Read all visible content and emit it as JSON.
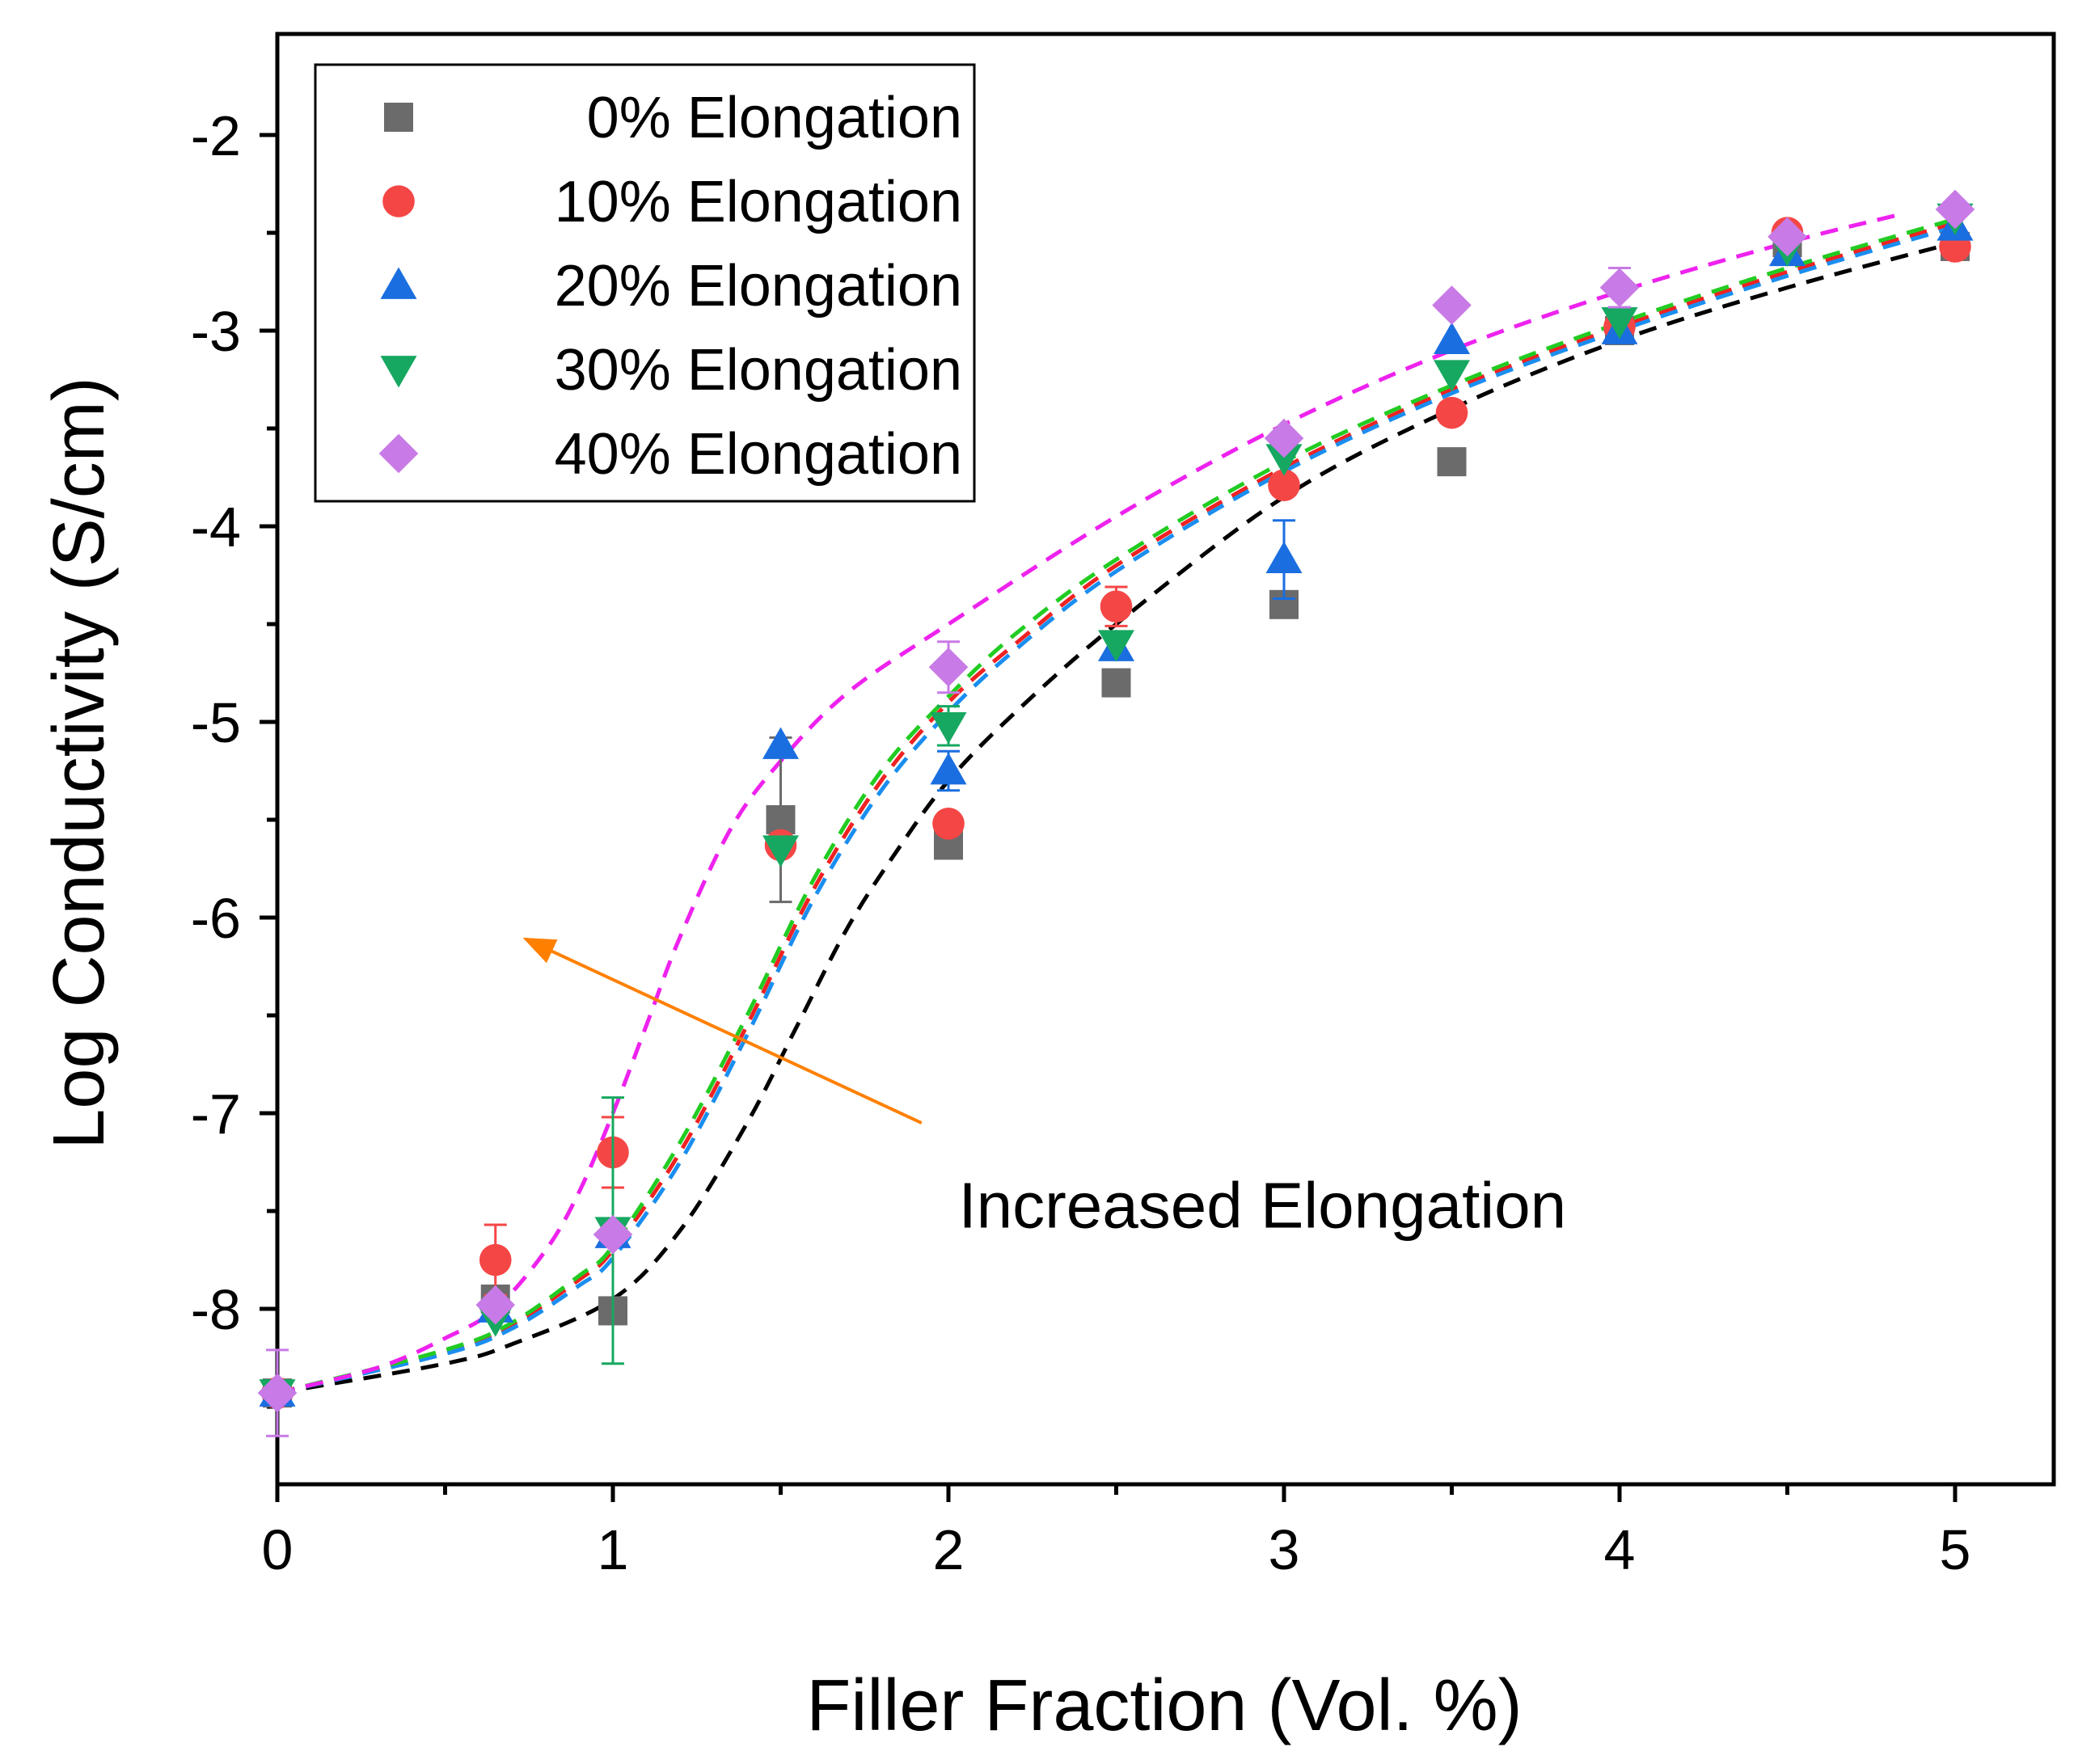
{
  "chart_data": {
    "type": "scatter",
    "title": "",
    "xlabel": "Filler Fraction (Vol. %)",
    "ylabel": "Log Conductivity (S/cm)",
    "xlim": [
      0,
      5.3
    ],
    "ylim": [
      -8.9,
      -1.5
    ],
    "x_ticks": [
      0,
      1,
      2,
      3,
      4,
      5
    ],
    "x_tick_labels": [
      "0",
      "1",
      "2",
      "3",
      "4",
      "5"
    ],
    "y_ticks": [
      -2,
      -3,
      -4,
      -5,
      -6,
      -7,
      -8
    ],
    "y_tick_labels": [
      "-2",
      "-3",
      "-4",
      "-5",
      "-6",
      "-7",
      "-8"
    ],
    "legend_position": "top-left",
    "series": [
      {
        "name": "0% Elongation",
        "label": "0% Elongation",
        "marker": "square",
        "color": "#6b6b6b",
        "fit_color": "#000000",
        "x": [
          0,
          0.65,
          1,
          1.5,
          2,
          2.5,
          3,
          3.5,
          4,
          4.5,
          5
        ],
        "y": [
          -8.43,
          -7.95,
          -8.01,
          -5.5,
          -5.63,
          -4.8,
          -4.4,
          -3.67,
          -3.0,
          -2.55,
          -2.57
        ],
        "err": [
          0,
          0,
          0,
          0.42,
          0,
          0,
          0,
          0,
          0,
          0,
          0
        ],
        "fit_x": [
          0,
          0.5,
          0.7,
          1,
          1.2,
          1.4,
          1.55,
          1.7,
          1.85,
          2,
          2.2,
          2.5,
          3,
          3.5,
          4,
          4.5,
          5
        ],
        "fit_y": [
          -8.43,
          -8.28,
          -8.18,
          -7.95,
          -7.6,
          -7.05,
          -6.55,
          -6.05,
          -5.65,
          -5.3,
          -4.95,
          -4.5,
          -3.85,
          -3.4,
          -3.05,
          -2.78,
          -2.55
        ]
      },
      {
        "name": "10% Elongation",
        "label": "10% Elongation",
        "marker": "circle",
        "color": "#f54646",
        "fit_color": "#ee2222",
        "x": [
          0,
          0.65,
          1,
          1.5,
          2,
          2.5,
          3,
          3.5,
          4,
          4.5,
          5
        ],
        "y": [
          -8.43,
          -7.75,
          -7.2,
          -5.63,
          -5.52,
          -4.41,
          -3.79,
          -3.42,
          -2.98,
          -2.5,
          -2.57
        ],
        "err": [
          0,
          0.18,
          0.18,
          0,
          0,
          0.1,
          0,
          0,
          0,
          0,
          0
        ],
        "fit_x": [
          0,
          0.5,
          0.7,
          0.9,
          1.0,
          1.2,
          1.4,
          1.6,
          1.8,
          2,
          2.2,
          2.5,
          3,
          3.5,
          4,
          4.5,
          5
        ],
        "fit_y": [
          -8.43,
          -8.22,
          -8.08,
          -7.85,
          -7.7,
          -7.2,
          -6.55,
          -5.85,
          -5.3,
          -4.9,
          -4.6,
          -4.2,
          -3.7,
          -3.3,
          -2.98,
          -2.7,
          -2.45
        ]
      },
      {
        "name": "20% Elongation",
        "label": "20% Elongation",
        "marker": "triangle-up",
        "color": "#1a6ee0",
        "fit_color": "#1a8ef0",
        "x": [
          0,
          0.65,
          1,
          1.5,
          2,
          2.5,
          3,
          3.5,
          4,
          4.5,
          5
        ],
        "y": [
          -8.43,
          -8.0,
          -7.62,
          -5.12,
          -5.25,
          -4.62,
          -4.17,
          -3.05,
          -3.0,
          -2.6,
          -2.47
        ],
        "err": [
          0,
          0,
          0,
          0,
          0.1,
          0,
          0.2,
          0,
          0,
          0,
          0
        ],
        "fit_x": [
          0,
          0.5,
          0.7,
          0.9,
          1.0,
          1.2,
          1.4,
          1.6,
          1.8,
          2,
          2.2,
          2.5,
          3,
          3.5,
          4,
          4.5,
          5
        ],
        "fit_y": [
          -8.43,
          -8.23,
          -8.1,
          -7.88,
          -7.74,
          -7.25,
          -6.6,
          -5.9,
          -5.35,
          -4.95,
          -4.63,
          -4.23,
          -3.72,
          -3.32,
          -3.0,
          -2.72,
          -2.47
        ]
      },
      {
        "name": "30% Elongation",
        "label": "30% Elongation",
        "marker": "triangle-down",
        "color": "#16a860",
        "fit_color": "#22cc22",
        "x": [
          0,
          0.65,
          1,
          1.5,
          2,
          2.5,
          3,
          3.5,
          4,
          4.5,
          5
        ],
        "y": [
          -8.43,
          -8.05,
          -7.6,
          -5.65,
          -5.02,
          -4.6,
          -3.65,
          -3.22,
          -2.95,
          -2.58,
          -2.42
        ],
        "err": [
          0,
          0,
          0.68,
          0,
          0.1,
          0,
          0,
          0,
          0,
          0,
          0
        ],
        "fit_x": [
          0,
          0.5,
          0.7,
          0.9,
          1.0,
          1.2,
          1.4,
          1.6,
          1.8,
          2,
          2.2,
          2.5,
          3,
          3.5,
          4,
          4.5,
          5
        ],
        "fit_y": [
          -8.43,
          -8.21,
          -8.07,
          -7.83,
          -7.68,
          -7.15,
          -6.5,
          -5.8,
          -5.25,
          -4.87,
          -4.55,
          -4.17,
          -3.67,
          -3.28,
          -2.96,
          -2.68,
          -2.43
        ]
      },
      {
        "name": "40% Elongation",
        "label": "40% Elongation",
        "marker": "diamond",
        "color": "#c87ae6",
        "fit_color": "#ee22ee",
        "x": [
          0,
          0.65,
          1,
          2,
          3,
          3.5,
          4,
          4.5,
          5
        ],
        "y": [
          -8.43,
          -7.98,
          -7.62,
          -4.72,
          -3.55,
          -2.87,
          -2.78,
          -2.52,
          -2.38
        ],
        "err": [
          0.22,
          0,
          0,
          0.13,
          0,
          0,
          0.1,
          0,
          0
        ],
        "fit_x": [
          0,
          0.3,
          0.5,
          0.65,
          0.8,
          0.9,
          1.0,
          1.1,
          1.2,
          1.35,
          1.5,
          1.7,
          2,
          2.5,
          3,
          3.5,
          4,
          4.5,
          4.85
        ],
        "fit_y": [
          -8.43,
          -8.3,
          -8.15,
          -8.0,
          -7.7,
          -7.4,
          -7.0,
          -6.55,
          -6.1,
          -5.55,
          -5.2,
          -4.85,
          -4.5,
          -3.95,
          -3.48,
          -3.1,
          -2.8,
          -2.55,
          -2.4
        ]
      }
    ],
    "annotations": [
      {
        "text": "Increased Elongation",
        "x": 2.03,
        "y": -7.47,
        "arrow_from": [
          1.92,
          -7.05
        ],
        "arrow_to": [
          0.74,
          -6.11
        ],
        "arrow_color": "#ff8000"
      }
    ]
  }
}
